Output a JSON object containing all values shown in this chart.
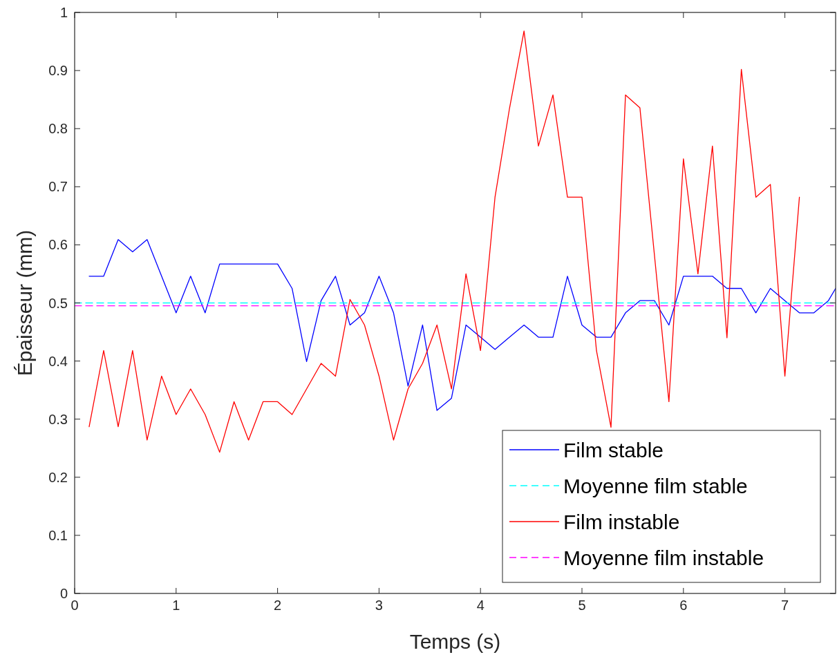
{
  "chart_data": {
    "type": "line",
    "xlabel": "Temps (s)",
    "ylabel": "Épaisseur (mm)",
    "xlim": [
      0,
      7.5
    ],
    "ylim": [
      0,
      1
    ],
    "xticks": [
      0,
      1,
      2,
      3,
      4,
      5,
      6,
      7
    ],
    "yticks": [
      0,
      0.1,
      0.2,
      0.3,
      0.4,
      0.5,
      0.6,
      0.7,
      0.8,
      0.9,
      1
    ],
    "grid": false,
    "legend": "bottom right",
    "marker": "none",
    "series": [
      {
        "name": "Film stable",
        "color": "#0000ff",
        "line_style": "solid",
        "x": [
          0.143,
          0.286,
          0.429,
          0.571,
          0.714,
          0.857,
          1,
          1.143,
          1.286,
          1.429,
          1.571,
          1.714,
          1.857,
          2,
          2.143,
          2.286,
          2.429,
          2.571,
          2.714,
          2.857,
          3,
          3.143,
          3.286,
          3.429,
          3.571,
          3.714,
          3.857,
          4,
          4.143,
          4.286,
          4.429,
          4.571,
          4.714,
          4.857,
          5,
          5.143,
          5.286,
          5.429,
          5.571,
          5.714,
          5.857,
          6,
          6.143,
          6.286,
          6.429,
          6.571,
          6.714,
          6.857,
          7,
          7.143,
          7.286,
          7.429,
          7.5
        ],
        "values": [
          0.546,
          0.546,
          0.609,
          0.588,
          0.609,
          0.546,
          0.483,
          0.546,
          0.483,
          0.567,
          0.567,
          0.567,
          0.567,
          0.567,
          0.525,
          0.399,
          0.504,
          0.546,
          0.462,
          0.483,
          0.546,
          0.483,
          0.357,
          0.462,
          0.315,
          0.336,
          0.462,
          0.441,
          0.42,
          0.441,
          0.462,
          0.441,
          0.441,
          0.546,
          0.462,
          0.441,
          0.441,
          0.483,
          0.504,
          0.504,
          0.462,
          0.546,
          0.546,
          0.546,
          0.525,
          0.525,
          0.483,
          0.525,
          0.504,
          0.483,
          0.483,
          0.504,
          0.525
        ]
      },
      {
        "name": "Moyenne film stable",
        "color": "#00ffff",
        "line_style": "dashed",
        "x": [
          0,
          7.5
        ],
        "values": [
          0.5,
          0.5
        ]
      },
      {
        "name": "Film instable",
        "color": "#ff0000",
        "line_style": "solid",
        "x": [
          0.143,
          0.286,
          0.429,
          0.571,
          0.714,
          0.857,
          1,
          1.143,
          1.286,
          1.429,
          1.571,
          1.714,
          1.857,
          2,
          2.143,
          2.286,
          2.429,
          2.571,
          2.714,
          2.857,
          3,
          3.143,
          3.286,
          3.429,
          3.571,
          3.714,
          3.857,
          4,
          4.143,
          4.286,
          4.429,
          4.571,
          4.714,
          4.857,
          5,
          5.143,
          5.286,
          5.429,
          5.571,
          5.714,
          5.857,
          6,
          6.143,
          6.286,
          6.429,
          6.571,
          6.714,
          6.857,
          7,
          7.143
        ],
        "values": [
          0.287,
          0.418,
          0.287,
          0.418,
          0.264,
          0.374,
          0.308,
          0.352,
          0.308,
          0.243,
          0.33,
          0.264,
          0.33,
          0.33,
          0.308,
          0.352,
          0.396,
          0.374,
          0.506,
          0.462,
          0.374,
          0.264,
          0.352,
          0.396,
          0.462,
          0.352,
          0.55,
          0.418,
          0.682,
          0.835,
          0.968,
          0.77,
          0.858,
          0.682,
          0.682,
          0.418,
          0.286,
          0.858,
          0.836,
          0.583,
          0.33,
          0.748,
          0.55,
          0.77,
          0.44,
          0.902,
          0.682,
          0.704,
          0.374,
          0.682
        ]
      },
      {
        "name": "Moyenne film instable",
        "color": "#ff00ff",
        "line_style": "dashed",
        "x": [
          0,
          7.5
        ],
        "values": [
          0.495,
          0.495
        ]
      }
    ]
  }
}
